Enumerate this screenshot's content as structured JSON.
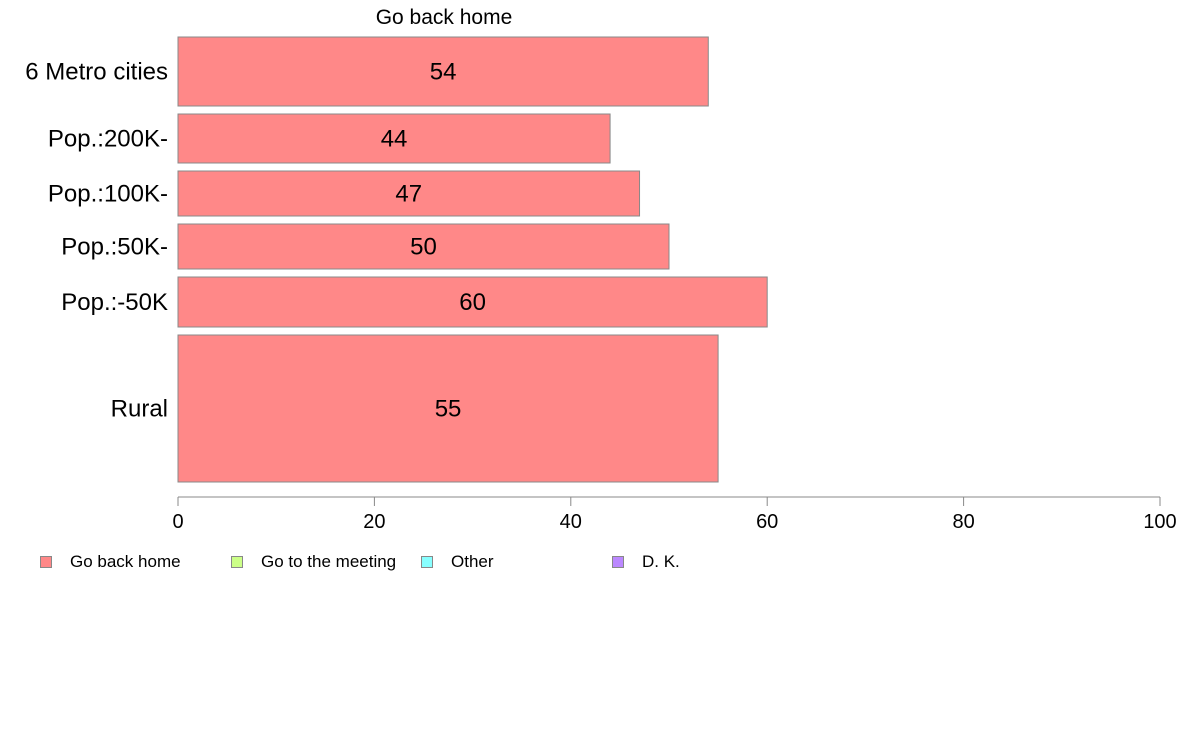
{
  "chart_data": {
    "type": "bar",
    "orientation": "horizontal",
    "title": "Go back home",
    "categories": [
      "6 Metro cities",
      "Pop.:200K-",
      "Pop.:100K-",
      "Pop.:50K-",
      "Pop.:-50K",
      "Rural"
    ],
    "values": [
      54,
      44,
      47,
      50,
      60,
      55
    ],
    "value_labels": [
      "54",
      "44",
      "47",
      "50",
      "60",
      "55"
    ],
    "xlim": [
      0,
      100
    ],
    "xticks": [
      0,
      20,
      40,
      60,
      80,
      100
    ],
    "xtick_labels": [
      "0",
      "20",
      "40",
      "60",
      "80",
      "100"
    ],
    "grid": false,
    "bar_color": "#ff8888",
    "bar_edge_color": "#888888",
    "legend": {
      "placement": "bottom-left",
      "entries": [
        {
          "label": "Go back home",
          "color": "#ff8888"
        },
        {
          "label": "Go to the meeting",
          "color": "#ccff88"
        },
        {
          "label": "Other",
          "color": "#88ffff"
        },
        {
          "label": "D. K.",
          "color": "#bb88ff"
        }
      ]
    }
  }
}
